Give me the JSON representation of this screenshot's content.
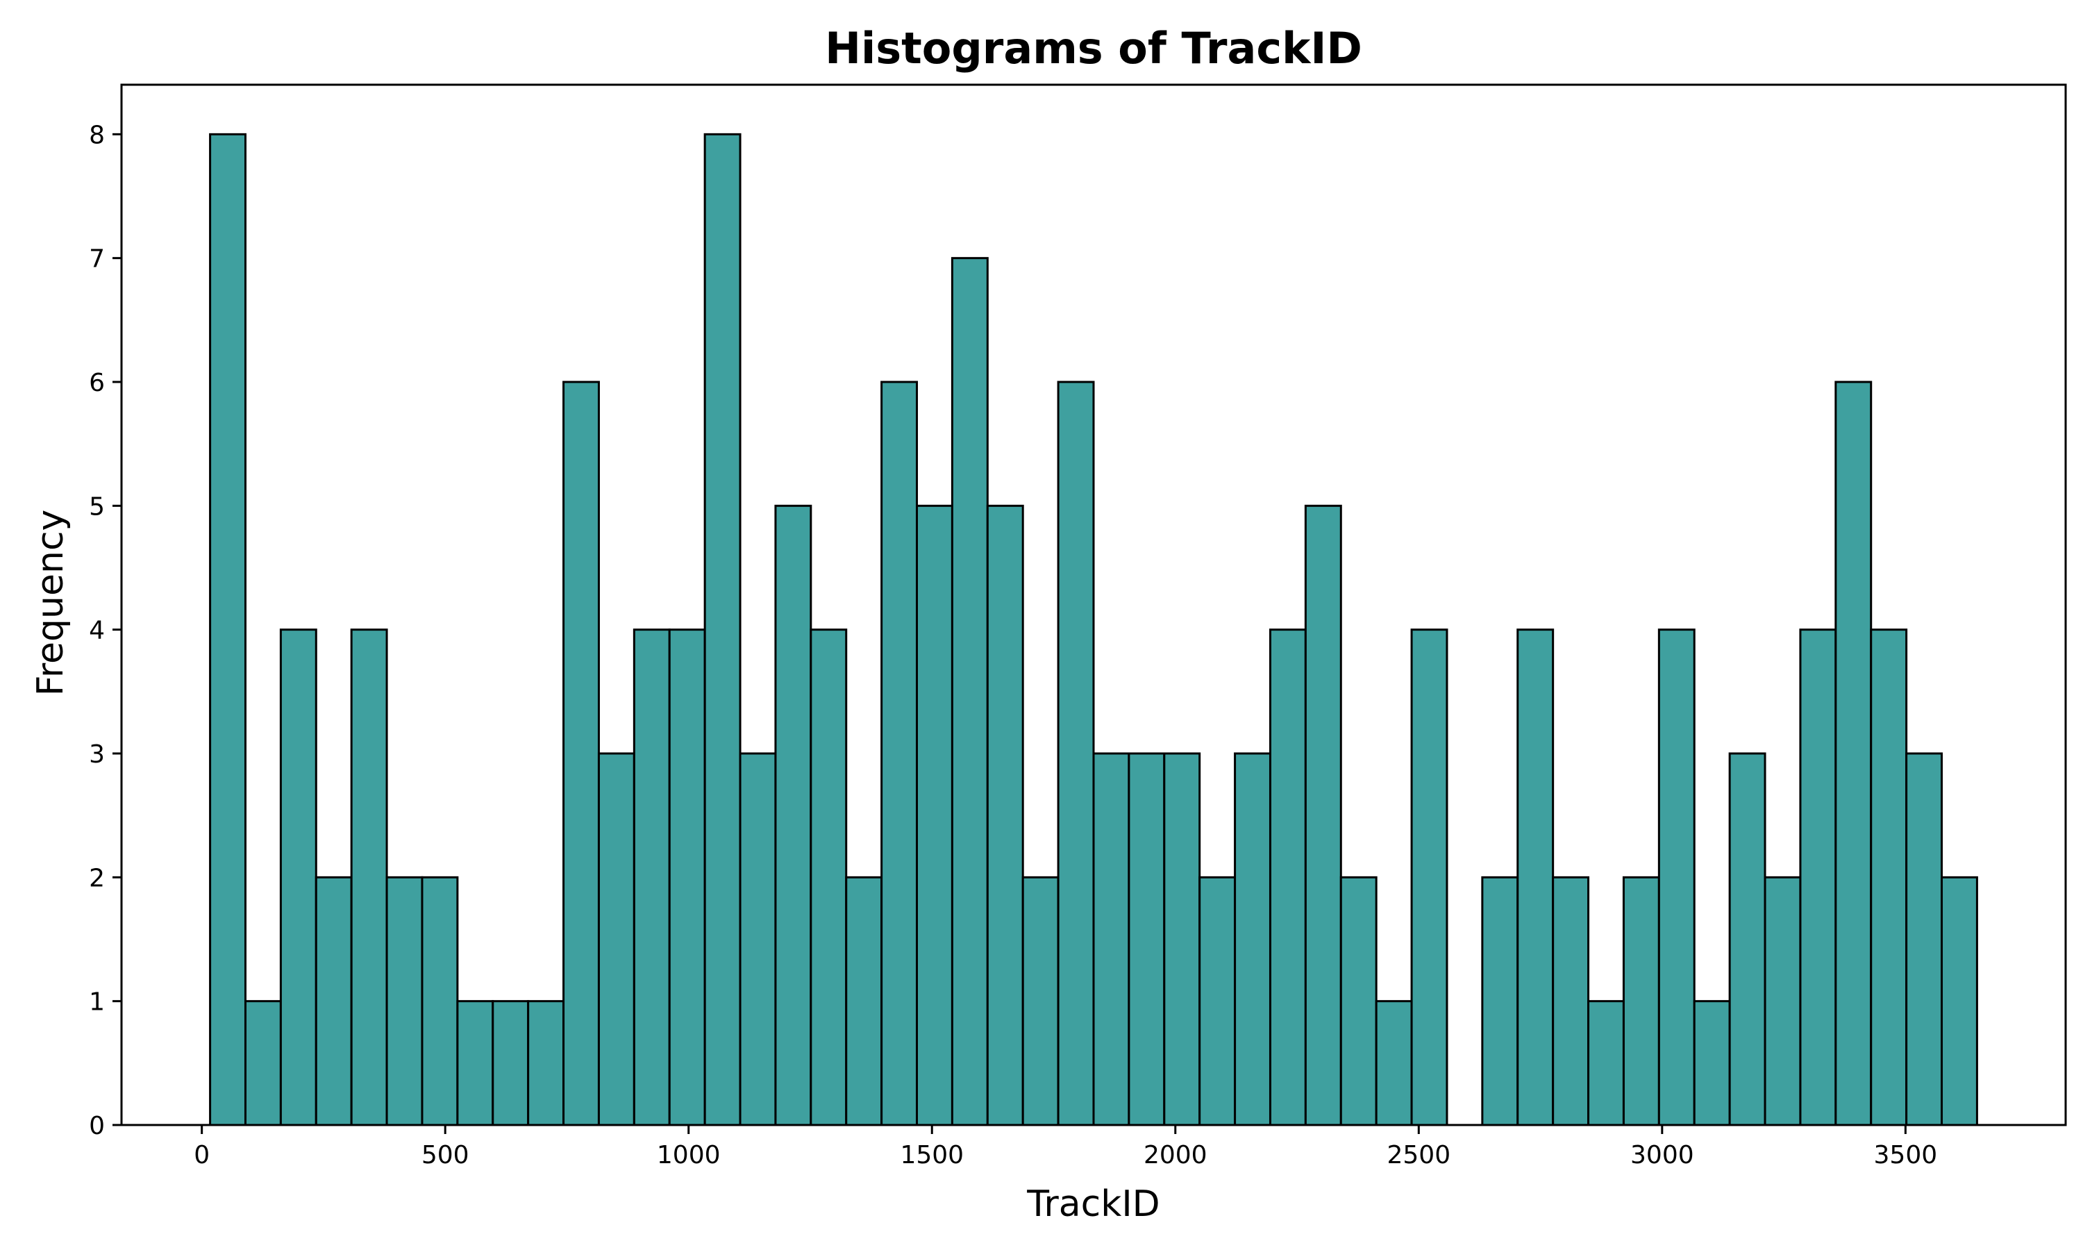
{
  "chart_data": {
    "type": "bar",
    "title": "Histograms of TrackID",
    "xlabel": "TrackID",
    "ylabel": "Frequency",
    "bar_color": "#3fa09f",
    "edge_color": "#000000",
    "bin_start": 17,
    "bin_end": 3647,
    "bin_count": 50,
    "xlim": [
      -165,
      3829
    ],
    "ylim": [
      0,
      8.4
    ],
    "xticks": [
      0,
      500,
      1000,
      1500,
      2000,
      2500,
      3000,
      3500
    ],
    "yticks": [
      0,
      1,
      2,
      3,
      4,
      5,
      6,
      7,
      8
    ],
    "values": [
      8,
      1,
      4,
      2,
      4,
      2,
      2,
      1,
      1,
      1,
      6,
      3,
      4,
      4,
      8,
      3,
      5,
      4,
      2,
      6,
      5,
      7,
      5,
      2,
      6,
      3,
      3,
      3,
      2,
      3,
      4,
      5,
      2,
      1,
      4,
      0,
      2,
      4,
      2,
      1,
      2,
      4,
      1,
      3,
      2,
      4,
      6,
      4,
      3,
      2
    ],
    "grid": false,
    "legend": "none"
  }
}
